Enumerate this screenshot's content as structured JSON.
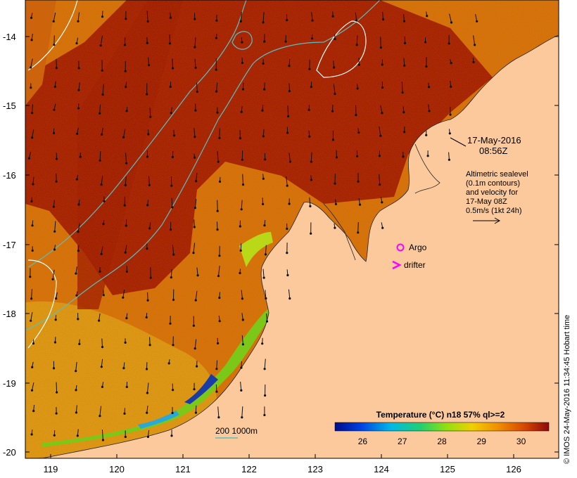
{
  "map": {
    "y_ticks": [
      "-14",
      "-15",
      "-16",
      "-17",
      "-18",
      "-19",
      "-20"
    ],
    "x_ticks": [
      "119",
      "120",
      "121",
      "122",
      "123",
      "124",
      "125",
      "126"
    ]
  },
  "annotations": {
    "date": "17-May-2016",
    "time": "08:56Z",
    "altimetry_lines": [
      "Altimetric sealevel",
      "(0.1m contours)",
      "and velocity for",
      "17-May 08Z",
      "0.5m/s (1kt 24h)"
    ],
    "legend_argo": "Argo",
    "legend_drifter": "drifter",
    "depth_contours": "200  1000m"
  },
  "colorbar": {
    "title": "Temperature (°C) n18 57% ql>=2",
    "ticks": [
      "26",
      "27",
      "28",
      "29",
      "30"
    ],
    "range": [
      25.3,
      30.7
    ]
  },
  "credit": "© IMOS 24-May-2016 11:34:45 Hobart time",
  "colors": {
    "land": "#fbc99b",
    "warm_sst": "#a31406",
    "mid_sst": "#d86a10",
    "cool_sst": "#e4a418",
    "shelf_green": "#8cd018",
    "contour_200": "#58c0c0",
    "contour_1000": "#ffffff",
    "argo": "#ff00ff",
    "drifter": "#ff00ff"
  }
}
